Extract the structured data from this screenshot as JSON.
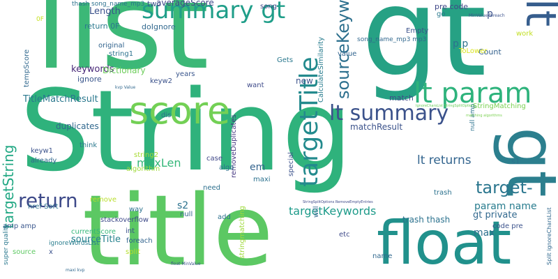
{
  "word_cloud": {
    "words": [
      {
        "text": "String",
        "color": "#2fb27c"
      },
      {
        "text": "list",
        "color": "#3cb877"
      },
      {
        "text": "title",
        "color": "#5cc863"
      },
      {
        "text": "gt",
        "color": "#26a184"
      },
      {
        "text": "float",
        "color": "#21918c"
      },
      {
        "text": "gt",
        "color": "#2c7f8e"
      },
      {
        "text": "lt",
        "color": "#365d8d"
      },
      {
        "text": "score",
        "color": "#73d055"
      },
      {
        "text": "summary gt",
        "color": "#1f9e89"
      },
      {
        "text": "lt param",
        "color": "#2eb37c"
      },
      {
        "text": "targetTitle",
        "color": "#238a8d"
      },
      {
        "text": "lt summary",
        "color": "#3b528b"
      },
      {
        "text": "target-",
        "color": "#2a768e"
      },
      {
        "text": "targetString",
        "color": "#22a884"
      },
      {
        "text": "return",
        "color": "#3e4a89"
      },
      {
        "text": "sourceKeywords",
        "color": "#2d708e"
      },
      {
        "text": "maxLen",
        "color": "#35b779"
      },
      {
        "text": "targetKeywords",
        "color": "#1e9b8a"
      },
      {
        "text": "lt returns",
        "color": "#32648e"
      },
      {
        "text": "param name",
        "color": "#287c8e"
      },
      {
        "text": "gt private",
        "color": "#31688e"
      },
      {
        "text": "trash thash",
        "color": "#2c728e"
      },
      {
        "text": "sourceTitle",
        "color": "#26828e"
      },
      {
        "text": "averageScore",
        "color": "#3f4788"
      },
      {
        "text": "Length",
        "color": "#3b528b"
      },
      {
        "text": "keywords",
        "color": "#482878"
      },
      {
        "text": "TitleMatchResult",
        "color": "#2a788e"
      },
      {
        "text": "Dictionary",
        "color": "#6ccd5a"
      },
      {
        "text": "duplicates",
        "color": "#31688e"
      },
      {
        "text": "matchResult",
        "color": "#3b528b"
      },
      {
        "text": "removeDuplicates",
        "color": "#453781"
      },
      {
        "text": "stringmatching",
        "color": "#9fda3a"
      },
      {
        "text": "currentScore",
        "color": "#35b779"
      },
      {
        "text": "ignoreWordsList",
        "color": "#287d8e"
      },
      {
        "text": "s2",
        "color": "#2c728e"
      },
      {
        "text": "em",
        "color": "#33638d"
      },
      {
        "text": "max",
        "color": "#2d708e"
      },
      {
        "text": "pre code",
        "color": "#3f4788"
      },
      {
        "text": "Count",
        "color": "#34618d"
      },
      {
        "text": "match",
        "color": "#3e4a89"
      },
      {
        "text": "algorithm",
        "color": "#9fda3a"
      },
      {
        "text": "algo",
        "color": "#2c728e"
      },
      {
        "text": "case",
        "color": "#3f4788"
      },
      {
        "text": "need",
        "color": "#2d708e"
      },
      {
        "text": "new",
        "color": "#3b528b"
      },
      {
        "text": "p p",
        "color": "#2c728e"
      },
      {
        "text": "two",
        "color": "#3b528b"
      },
      {
        "text": "doIgnore",
        "color": "#31688e"
      },
      {
        "text": "return 0F",
        "color": "#2a788e"
      },
      {
        "text": "ignore",
        "color": "#39568c"
      },
      {
        "text": "keyw2",
        "color": "#3b528b"
      },
      {
        "text": "string1",
        "color": "#2c728e"
      },
      {
        "text": "tempScore",
        "color": "#31688e"
      },
      {
        "text": "original",
        "color": "#32648e"
      },
      {
        "text": "years",
        "color": "#39568c"
      },
      {
        "text": "want",
        "color": "#3e4a89"
      },
      {
        "text": "dis",
        "color": "#2d708e"
      },
      {
        "text": "think",
        "color": "#2a788e"
      },
      {
        "text": "string2",
        "color": "#a8db34"
      },
      {
        "text": "keyw1",
        "color": "#3b528b"
      },
      {
        "text": "already",
        "color": "#31688e"
      },
      {
        "text": "remove",
        "color": "#b8de29"
      },
      {
        "text": "way",
        "color": "#2c728e"
      },
      {
        "text": "int",
        "color": "#3b528b"
      },
      {
        "text": "null",
        "color": "#32648e"
      },
      {
        "text": "add",
        "color": "#2d708e"
      },
      {
        "text": "maxi",
        "color": "#2c728e"
      },
      {
        "text": "etc",
        "color": "#3e4a89"
      },
      {
        "text": "name",
        "color": "#31688e"
      },
      {
        "text": "Gets",
        "color": "#2a788e"
      },
      {
        "text": "value",
        "color": "#32648e"
      },
      {
        "text": "Empty",
        "color": "#3b528b"
      },
      {
        "text": "song_name_mp3 mp3",
        "color": "#31688e"
      },
      {
        "text": "thash song_name_mp3",
        "color": "#2c728e"
      },
      {
        "text": "song",
        "color": "#3f4788"
      },
      {
        "text": "go",
        "color": "#2a788e"
      },
      {
        "text": "work",
        "color": "#c2df23"
      },
      {
        "text": "ToLower",
        "color": "#d8e219"
      },
      {
        "text": "StringMatching",
        "color": "#7ad151"
      },
      {
        "text": "CalculateSimilarity",
        "color": "#287c8e"
      },
      {
        "text": "special",
        "color": "#3b528b"
      },
      {
        "text": "will",
        "color": "#31688e"
      },
      {
        "text": "s1",
        "color": "#2c728e"
      },
      {
        "text": "null amp",
        "color": "#2c728e"
      },
      {
        "text": "code pre",
        "color": "#3b528b"
      },
      {
        "text": "foreach",
        "color": "#32648e"
      },
      {
        "text": "split",
        "color": "#b5de2b"
      },
      {
        "text": "stackoverflow",
        "color": "#3e4a89"
      },
      {
        "text": "href Sort",
        "color": "#2d708e"
      },
      {
        "text": "amp amp",
        "color": "#39568c"
      },
      {
        "text": "source",
        "color": "#5ec962"
      },
      {
        "text": "super quality",
        "color": "#2a788e"
      },
      {
        "text": "Split ignoreCharsList",
        "color": "#31688e"
      },
      {
        "text": "x",
        "color": "#3b528b"
      },
      {
        "text": "trash",
        "color": "#2c728e"
      },
      {
        "text": "p",
        "color": "#3b528b"
      },
      {
        "text": "0F",
        "color": "#c5e021"
      },
      {
        "text": "MinValue foreach",
        "color": "#3b528b"
      },
      {
        "text": "IgnoreCharsList StringSplitOptions",
        "color": "#6ccd5a"
      },
      {
        "text": "matching algorithms",
        "color": "#7ad151"
      },
      {
        "text": "StringSplitOptions RemoveEmptyEntries",
        "color": "#3e4a89"
      },
      {
        "text": "float MinValue",
        "color": "#3b528b"
      },
      {
        "text": "maxi kvp",
        "color": "#31688e"
      },
      {
        "text": "kvp Value",
        "color": "#31688e"
      }
    ]
  }
}
